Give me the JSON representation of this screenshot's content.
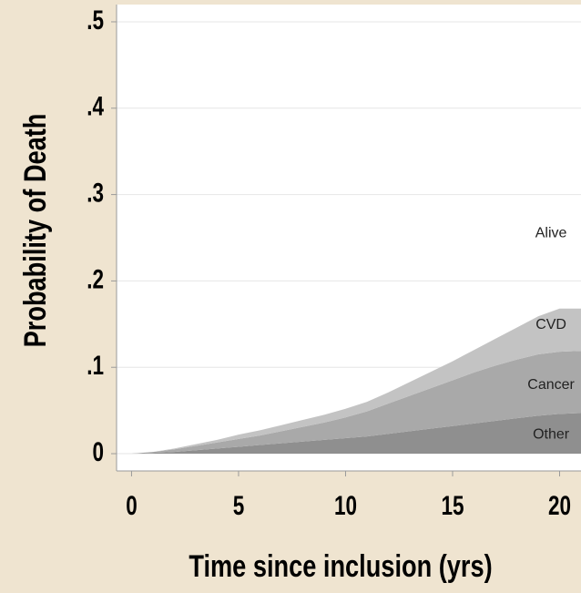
{
  "chart_data": {
    "type": "area",
    "stacked": true,
    "xlabel": "Time since inclusion (yrs)",
    "ylabel": "Probability of Death",
    "x_ticks": [
      0,
      5,
      10,
      15,
      20
    ],
    "x_tick_labels": [
      "0",
      "5",
      "10",
      "15",
      "20"
    ],
    "y_ticks": [
      0,
      0.1,
      0.2,
      0.3,
      0.4,
      0.5
    ],
    "y_tick_labels": [
      "0",
      ".1",
      ".2",
      ".3",
      ".4",
      ".5"
    ],
    "xlim": [
      -0.7,
      21.0
    ],
    "ylim": [
      -0.02,
      0.52
    ],
    "grid": true,
    "x": [
      0,
      1,
      2,
      3,
      4,
      5,
      6,
      7,
      8,
      9,
      10,
      11,
      12,
      13,
      14,
      15,
      16,
      17,
      18,
      19,
      20,
      21
    ],
    "series": [
      {
        "name": "Other",
        "values": [
          0,
          0.001,
          0.002,
          0.004,
          0.006,
          0.008,
          0.01,
          0.012,
          0.014,
          0.016,
          0.018,
          0.02,
          0.023,
          0.026,
          0.029,
          0.032,
          0.035,
          0.038,
          0.041,
          0.044,
          0.046,
          0.047
        ],
        "color": "#8f8f8f"
      },
      {
        "name": "Cancer",
        "values": [
          0,
          0.001,
          0.003,
          0.005,
          0.007,
          0.009,
          0.011,
          0.014,
          0.017,
          0.02,
          0.024,
          0.029,
          0.035,
          0.041,
          0.047,
          0.053,
          0.059,
          0.064,
          0.068,
          0.071,
          0.072,
          0.072
        ],
        "color": "#a9a9a9"
      },
      {
        "name": "CVD",
        "values": [
          0,
          0,
          0.001,
          0.002,
          0.003,
          0.005,
          0.006,
          0.007,
          0.008,
          0.009,
          0.01,
          0.011,
          0.013,
          0.016,
          0.019,
          0.022,
          0.026,
          0.031,
          0.037,
          0.044,
          0.05,
          0.049
        ],
        "color": "#c3c3c3"
      }
    ],
    "region_labels": [
      "Alive",
      "CVD",
      "Cancer",
      "Other"
    ],
    "plot_background": "#ffffff",
    "page_background": "#efe4d0",
    "grid_color": "#e6e6e6"
  }
}
